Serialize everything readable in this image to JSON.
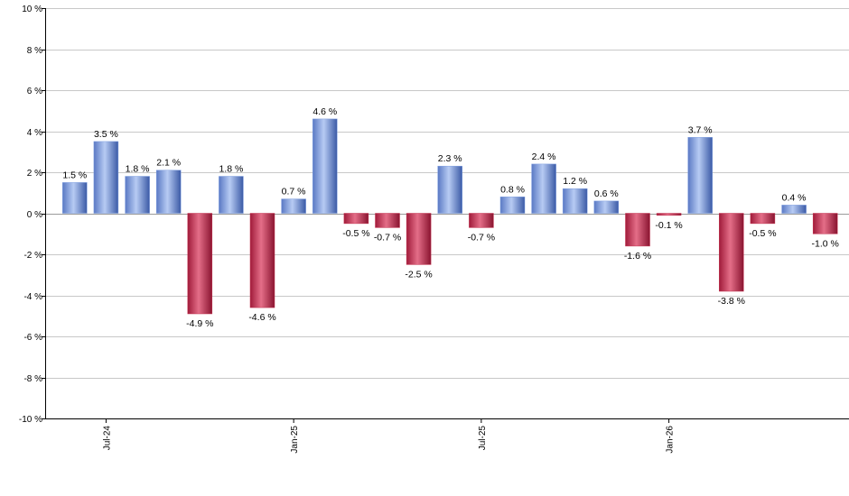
{
  "chart_data": {
    "type": "bar",
    "title": "",
    "xlabel": "",
    "ylabel": "",
    "ylim": [
      -10,
      10
    ],
    "yticks": [
      -10,
      -8,
      -6,
      -4,
      -2,
      0,
      2,
      4,
      6,
      8,
      10
    ],
    "ytick_labels": [
      "-10 %",
      "-8 %",
      "-6 %",
      "-4 %",
      "-2 %",
      "0 %",
      "2 %",
      "4 %",
      "6 %",
      "8 %",
      "10 %"
    ],
    "grid": true,
    "positive_color": "#7f9fe0",
    "negative_color": "#c4304e",
    "x_tick_labels": [
      {
        "label": "Jul-24",
        "index": 1
      },
      {
        "label": "Jan-25",
        "index": 7
      },
      {
        "label": "Jul-25",
        "index": 13
      },
      {
        "label": "Jan-26",
        "index": 19
      }
    ],
    "values": [
      1.5,
      3.5,
      1.8,
      2.1,
      -4.9,
      1.8,
      -4.6,
      0.7,
      4.6,
      -0.5,
      -0.7,
      -2.5,
      2.3,
      -0.7,
      0.8,
      2.4,
      1.2,
      0.6,
      -1.6,
      -0.1,
      3.7,
      -3.8,
      -0.5,
      0.4,
      -1.0
    ],
    "value_labels": [
      "1.5 %",
      "3.5 %",
      "1.8 %",
      "2.1 %",
      "-4.9 %",
      "1.8 %",
      "-4.6 %",
      "0.7 %",
      "4.6 %",
      "-0.5 %",
      "-0.7 %",
      "-2.5 %",
      "2.3 %",
      "-0.7 %",
      "0.8 %",
      "2.4 %",
      "1.2 %",
      "0.6 %",
      "-1.6 %",
      "-0.1 %",
      "3.7 %",
      "-3.8 %",
      "-0.5 %",
      "0.4 %",
      "-1.0 %"
    ]
  }
}
